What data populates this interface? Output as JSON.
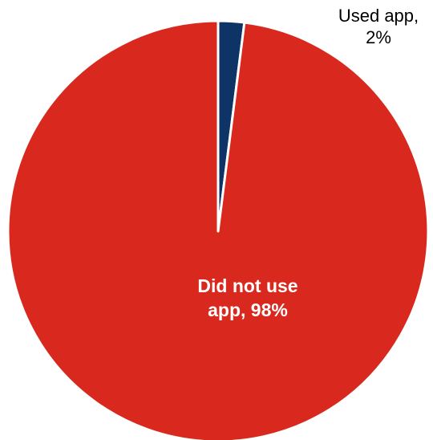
{
  "chart_data": {
    "type": "pie",
    "title": "",
    "start_angle_deg": 0,
    "direction": "clockwise",
    "slices": [
      {
        "label": "Used app",
        "value": 2,
        "color": "#0e3366",
        "data_label": "Used app, 2%",
        "label_line1": "Used app,",
        "label_line2": "2%"
      },
      {
        "label": "Did not use app",
        "value": 98,
        "color": "#d9281e",
        "data_label": "Did not use app, 98%",
        "label_line1": "Did not use",
        "label_line2": "app, 98%"
      }
    ],
    "legend": "none"
  }
}
